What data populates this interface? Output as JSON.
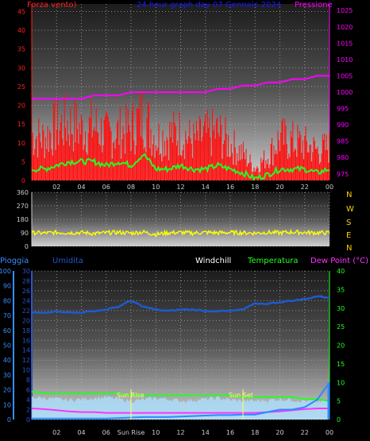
{
  "top": {
    "left_title": "Forza vento)",
    "center_title": "24 hour graph day 07 Gennaio 2024",
    "right_title": "Pressione",
    "colors": {
      "left": "#ff2020",
      "center": "#1a1aff",
      "right": "#ff00ff"
    }
  },
  "bottom": {
    "labels": [
      "Pioggia",
      "Umidita",
      "Windchill",
      "Temperatura",
      "Dew Point (°C)"
    ],
    "colors": [
      "#3a8cff",
      "#2a55c8",
      "#ffffff",
      "#22ff22",
      "#ff33ff"
    ],
    "sun_rise": "Sun Rise",
    "sun_set": "Sun Set"
  },
  "x_ticks": [
    "02",
    "04",
    "06",
    "08",
    "10",
    "12",
    "14",
    "16",
    "18",
    "20",
    "22",
    "00"
  ],
  "x_ticks_bottom": [
    "02",
    "04",
    "06",
    "Sun Rise",
    "10",
    "12",
    "14",
    "16",
    "18",
    "20",
    "22",
    "00"
  ],
  "compass": [
    "N",
    "W",
    "S",
    "E",
    "N"
  ],
  "chart_data": [
    {
      "type": "line",
      "name": "wind-pressure",
      "x_hours": [
        0,
        1,
        2,
        3,
        4,
        5,
        6,
        7,
        8,
        9,
        10,
        11,
        12,
        13,
        14,
        15,
        16,
        17,
        18,
        19,
        20,
        21,
        22,
        23,
        24
      ],
      "series": [
        {
          "name": "Forza vento",
          "axis": "left",
          "values": [
            15,
            14,
            18,
            19,
            17,
            18,
            15,
            16,
            17,
            22,
            14,
            15,
            16,
            13,
            15,
            16,
            12,
            9,
            4,
            8,
            14,
            13,
            12,
            10,
            11
          ]
        },
        {
          "name": "wind_avg",
          "axis": "left",
          "values": [
            3,
            3,
            4,
            5,
            5,
            5,
            4,
            5,
            4,
            7,
            3,
            3,
            4,
            3,
            3,
            4,
            3,
            2,
            0.5,
            1.5,
            3,
            3,
            3,
            2,
            3
          ]
        },
        {
          "name": "Pressione",
          "axis": "right",
          "values": [
            998,
            998,
            998,
            998,
            998,
            999,
            999,
            999,
            1000,
            1000,
            1000,
            1000,
            1000,
            1000,
            1000,
            1001,
            1001,
            1002,
            1002,
            1003,
            1003,
            1004,
            1004,
            1005,
            1005
          ]
        }
      ],
      "y_left": {
        "ticks": [
          0,
          5,
          10,
          15,
          20,
          25,
          30,
          35,
          40,
          45
        ],
        "range": [
          0,
          47
        ]
      },
      "y_right": {
        "ticks": [
          975,
          980,
          985,
          990,
          995,
          1000,
          1005,
          1010,
          1015,
          1020,
          1025
        ],
        "range": [
          973,
          1027
        ]
      }
    },
    {
      "type": "line",
      "name": "wind-direction",
      "series": [
        {
          "name": "direzione",
          "values": [
            90,
            88,
            92,
            90,
            92,
            85,
            90,
            93,
            88,
            95,
            80,
            90,
            92,
            88,
            93,
            90,
            92,
            90,
            88,
            93,
            90,
            95,
            92,
            90,
            90
          ]
        }
      ],
      "y": {
        "ticks": [
          0,
          90,
          180,
          270,
          360
        ],
        "range": [
          0,
          360
        ]
      }
    },
    {
      "type": "line",
      "name": "temp-humidity-rain",
      "series": [
        {
          "name": "Umidita",
          "axis": "left_hum",
          "values": [
            72,
            72,
            73,
            72,
            72,
            73,
            74,
            76,
            80,
            76,
            74,
            73,
            74,
            74,
            73,
            73,
            73,
            74,
            78,
            78,
            79,
            80,
            81,
            83,
            82
          ]
        },
        {
          "name": "Temperatura",
          "axis": "right",
          "values": [
            7.5,
            7,
            7,
            7,
            7,
            7,
            7,
            7,
            6.5,
            6.5,
            6.5,
            6.5,
            6.5,
            6.5,
            6.5,
            6.5,
            6.5,
            6,
            6,
            6,
            6,
            6,
            5.5,
            5.5,
            5
          ]
        },
        {
          "name": "Windchill",
          "axis": "right",
          "values": [
            6,
            5.8,
            5.5,
            5.2,
            5.5,
            5.8,
            6,
            5.5,
            5,
            5.3,
            5.8,
            5.5,
            5,
            5.2,
            5.5,
            5.8,
            5.3,
            5,
            5,
            5.2,
            5.5,
            5.3,
            5,
            4.8,
            5
          ]
        },
        {
          "name": "Dew Point",
          "axis": "right",
          "values": [
            3,
            2.8,
            2.5,
            2.2,
            2,
            2,
            1.8,
            1.8,
            1.8,
            1.8,
            1.8,
            1.8,
            1.8,
            1.8,
            1.8,
            1.8,
            1.8,
            1.8,
            1.8,
            2,
            2.2,
            2.5,
            2.8,
            3,
            3
          ]
        },
        {
          "name": "Pioggia",
          "axis": "left_rain",
          "values": [
            0.2,
            0.2,
            0.2,
            0.2,
            0.2,
            0.2,
            0.2,
            0.3,
            0.4,
            0.5,
            0.5,
            0.5,
            0.6,
            0.7,
            0.8,
            0.9,
            0.9,
            1,
            1,
            1.5,
            2,
            2,
            2.5,
            4,
            7.5
          ]
        }
      ],
      "y_rain": {
        "ticks": [
          0,
          2,
          4,
          6,
          8,
          10,
          12,
          14,
          16,
          18,
          20,
          22,
          24,
          26,
          28,
          30
        ],
        "range": [
          0,
          30
        ]
      },
      "y_hum": {
        "ticks": [
          0,
          10,
          20,
          30,
          40,
          50,
          60,
          70,
          80,
          90,
          100
        ],
        "range": [
          0,
          100
        ]
      },
      "y_right": {
        "ticks": [
          0,
          5,
          10,
          15,
          20,
          25,
          30,
          35,
          40
        ],
        "range": [
          0,
          40
        ]
      }
    }
  ]
}
